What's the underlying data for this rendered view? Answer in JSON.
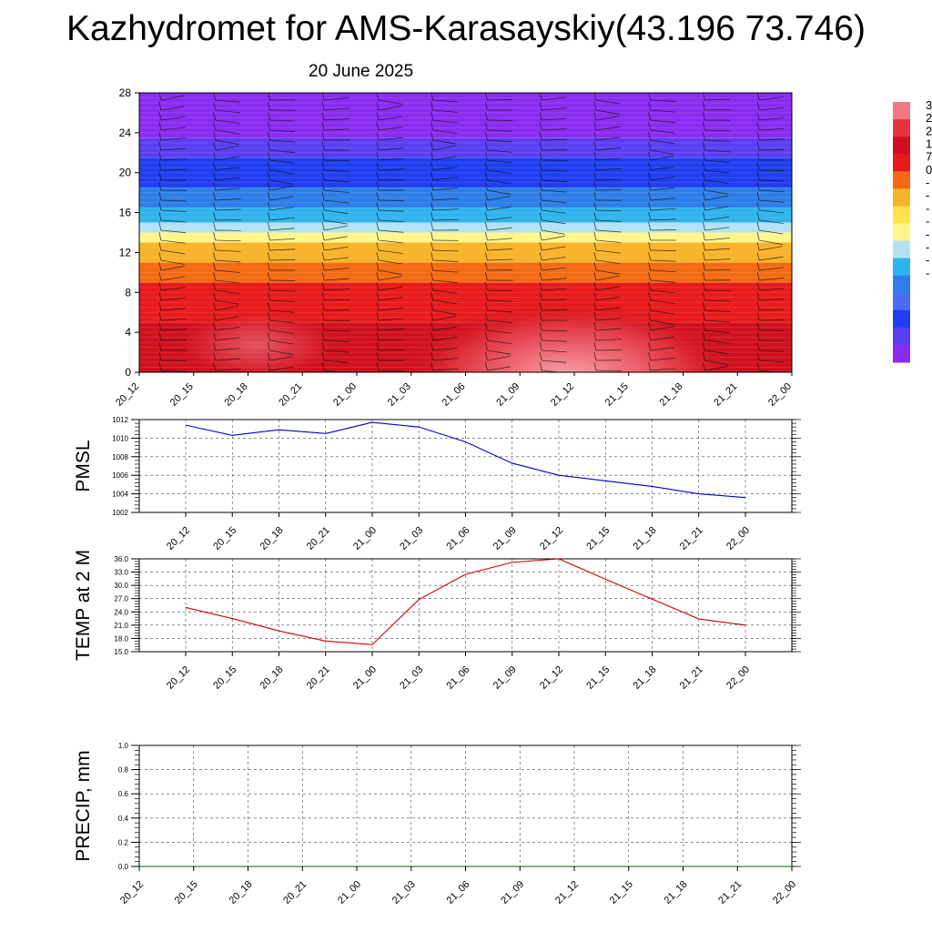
{
  "page": {
    "title": "Kazhydromet for AMS-Karasayskiy(43.196 73.746)",
    "subtitle": "20 June 2025"
  },
  "chart_data": [
    {
      "type": "heatmap",
      "name": "vertical-profile",
      "ylabel": "",
      "x_tick_labels": [
        "20_12",
        "20_15",
        "20_18",
        "20_21",
        "21_00",
        "21_03",
        "21_06",
        "21_09",
        "21_12",
        "21_15",
        "21_18",
        "21_21",
        "22_00"
      ],
      "yticks": [
        0,
        4,
        8,
        12,
        16,
        20,
        24,
        28
      ],
      "ylim": [
        0,
        28
      ],
      "temperature_bands": [
        {
          "y_from": 0,
          "y_to": 5,
          "color": "#d0101e"
        },
        {
          "y_from": 5,
          "y_to": 9,
          "color": "#e81a1a"
        },
        {
          "y_from": 9,
          "y_to": 11,
          "color": "#f46a12"
        },
        {
          "y_from": 11,
          "y_to": 13,
          "color": "#f8b32a"
        },
        {
          "y_from": 13,
          "y_to": 14,
          "color": "#fff58a"
        },
        {
          "y_from": 14,
          "y_to": 15,
          "color": "#b4e2f3"
        },
        {
          "y_from": 15,
          "y_to": 16.5,
          "color": "#2fb3ee"
        },
        {
          "y_from": 16.5,
          "y_to": 18.5,
          "color": "#2d7ee8"
        },
        {
          "y_from": 18.5,
          "y_to": 21.5,
          "color": "#1f3ef0"
        },
        {
          "y_from": 21.5,
          "y_to": 23.5,
          "color": "#5c3df2"
        },
        {
          "y_from": 23.5,
          "y_to": 28,
          "color": "#8a2cf0"
        }
      ],
      "colorbar": {
        "colors": [
          "#ef7a85",
          "#e4353f",
          "#d0101e",
          "#e81a1a",
          "#f46a12",
          "#f8b32a",
          "#fde24a",
          "#fff58a",
          "#b4e2f3",
          "#2fb3ee",
          "#2d7ee8",
          "#4a6df0",
          "#1f3ef0",
          "#5c3df2",
          "#8a2cf0"
        ],
        "labels": [
          "3",
          "2",
          "2",
          "1",
          "7",
          "0",
          "-",
          "-",
          "-",
          "-",
          "-",
          "-",
          "-",
          "-"
        ]
      },
      "legend_position": "right"
    },
    {
      "type": "line",
      "name": "pmsl",
      "ylabel": "PMSL",
      "x": [
        "20_12",
        "20_15",
        "20_18",
        "20_21",
        "21_00",
        "21_03",
        "21_06",
        "21_09",
        "21_12",
        "21_15",
        "21_18",
        "21_21",
        "22_00"
      ],
      "series": [
        {
          "values": [
            1011.4,
            1010.3,
            1010.9,
            1010.5,
            1011.7,
            1011.2,
            1009.6,
            1007.3,
            1006.0,
            1005.4,
            1004.8,
            1004.0,
            1003.6
          ],
          "color": "#0000cc"
        }
      ],
      "ylim": [
        1002,
        1012
      ],
      "yticks": [
        "1002",
        "1004",
        "1006",
        "1008",
        "1010",
        "1012"
      ],
      "grid": true
    },
    {
      "type": "line",
      "name": "temp2m",
      "ylabel": "TEMP at 2 M",
      "x": [
        "20_12",
        "20_15",
        "20_18",
        "20_21",
        "21_00",
        "21_03",
        "21_06",
        "21_09",
        "21_12",
        "21_15",
        "21_18",
        "21_21",
        "22_00"
      ],
      "series": [
        {
          "values": [
            25.0,
            22.5,
            19.7,
            17.4,
            16.6,
            26.8,
            32.5,
            35.2,
            36.0,
            31.4,
            26.9,
            22.4,
            21.0
          ],
          "color": "#cc0000"
        }
      ],
      "ylim": [
        15,
        36
      ],
      "yticks": [
        "15.0",
        "18.0",
        "21.0",
        "24.0",
        "27.0",
        "30.0",
        "33.0",
        "36.0"
      ],
      "grid": true
    },
    {
      "type": "line",
      "name": "precip",
      "ylabel": "PRECIP, mm",
      "x": [
        "20_12",
        "20_15",
        "20_18",
        "20_21",
        "21_00",
        "21_03",
        "21_06",
        "21_09",
        "21_12",
        "21_15",
        "21_18",
        "21_21",
        "22_00"
      ],
      "series": [
        {
          "values": [
            0,
            0,
            0,
            0,
            0,
            0,
            0,
            0,
            0,
            0,
            0,
            0,
            0
          ],
          "color": "#006400"
        }
      ],
      "ylim": [
        0,
        1
      ],
      "yticks": [
        "0.0",
        "0.2",
        "0.4",
        "0.6",
        "0.8",
        "1.0"
      ],
      "grid": true
    }
  ]
}
